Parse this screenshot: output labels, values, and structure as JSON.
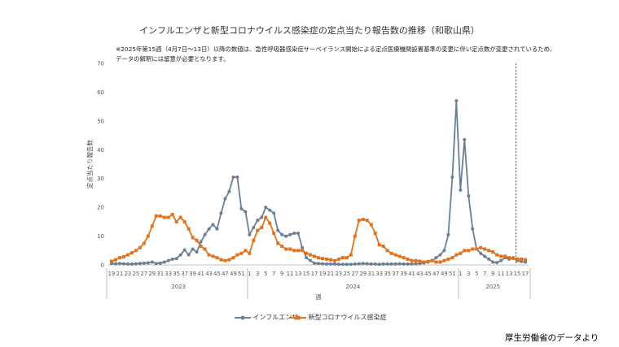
{
  "title": "インフルエンザと新型コロナウイルス感染症の定点当たり報告数の推移（和歌山県）",
  "notes": [
    "※2025年第15週（4月7日～13日）以降の数値は、急性呼吸器感染症サーベイランス開始による定点医療機関設置基準の変更に伴い定点数が変更されているため、",
    "データの解釈には留意が必要となります。"
  ],
  "source": "厚生労働省のデータより",
  "colors": {
    "influenza": "#6b7f95",
    "covid": "#e0731f",
    "axis": "#bfbfbf",
    "vline": "#555555"
  },
  "chart_data": {
    "type": "line",
    "ylabel": "定点当たり報告数",
    "xlabel": "週",
    "ylim": [
      0,
      70
    ],
    "yticks": [
      0,
      10,
      20,
      30,
      40,
      50,
      60,
      70
    ],
    "grid": false,
    "legend": "bottom",
    "x": [
      19,
      20,
      21,
      22,
      23,
      24,
      25,
      26,
      27,
      28,
      29,
      30,
      31,
      32,
      33,
      34,
      35,
      36,
      37,
      38,
      39,
      40,
      41,
      42,
      43,
      44,
      45,
      46,
      47,
      48,
      49,
      50,
      51,
      52,
      1,
      2,
      3,
      4,
      5,
      6,
      7,
      8,
      9,
      10,
      11,
      12,
      13,
      14,
      15,
      16,
      17,
      18,
      19,
      20,
      21,
      22,
      23,
      24,
      25,
      26,
      27,
      28,
      29,
      30,
      31,
      32,
      33,
      34,
      35,
      36,
      37,
      38,
      39,
      40,
      41,
      42,
      43,
      44,
      45,
      46,
      47,
      48,
      49,
      50,
      51,
      52,
      1,
      2,
      3,
      4,
      5,
      6,
      7,
      8,
      9,
      10,
      11,
      12,
      13,
      14,
      15,
      16,
      17
    ],
    "xtick_labels": [
      "19",
      "21",
      "23",
      "25",
      "27",
      "29",
      "31",
      "33",
      "35",
      "37",
      "39",
      "41",
      "43",
      "45",
      "47",
      "49",
      "51",
      "1",
      "3",
      "5",
      "7",
      "9",
      "11",
      "13",
      "15",
      "17",
      "19",
      "21",
      "23",
      "25",
      "27",
      "29",
      "31",
      "33",
      "35",
      "37",
      "39",
      "41",
      "43",
      "45",
      "47",
      "49",
      "51",
      "1",
      "3",
      "5",
      "7",
      "9",
      "11",
      "13",
      "15",
      "17"
    ],
    "year_labels": [
      "2023",
      "2024",
      "2025"
    ],
    "vline_week": "2025年第15週",
    "series": [
      {
        "name": "インフルエンザ",
        "values": [
          0.5,
          0.4,
          0.5,
          0.4,
          0.3,
          0.3,
          0.4,
          0.5,
          0.6,
          0.7,
          1.0,
          0.5,
          0.6,
          1.0,
          1.5,
          2.0,
          2.2,
          3.5,
          5.2,
          3.5,
          5.5,
          4.5,
          8.0,
          10.5,
          12.5,
          14.0,
          12.5,
          18.0,
          23.0,
          25.5,
          30.5,
          30.5,
          19.5,
          18.5,
          10.5,
          13.0,
          15.5,
          16.5,
          20.0,
          19.0,
          18.0,
          12.0,
          10.5,
          10.0,
          10.5,
          11.0,
          11.0,
          6.0,
          2.5,
          1.5,
          0.6,
          0.5,
          0.4,
          0.3,
          0.3,
          0.3,
          0.2,
          0.2,
          0.2,
          0.2,
          0.3,
          0.4,
          0.5,
          0.4,
          0.3,
          0.3,
          0.2,
          0.3,
          0.3,
          0.3,
          0.3,
          0.4,
          0.3,
          0.3,
          0.3,
          0.4,
          0.5,
          0.7,
          1.0,
          1.5,
          2.5,
          3.5,
          5.0,
          10.5,
          30.5,
          57.0,
          26.0,
          43.5,
          24.0,
          12.5,
          5.5,
          4.0,
          3.0,
          2.0,
          1.0,
          0.8,
          1.5,
          2.5,
          2.0,
          2.5,
          1.5,
          1.2,
          1.0
        ]
      },
      {
        "name": "新型コロナウイルス感染症",
        "values": [
          1.3,
          1.8,
          2.5,
          2.8,
          3.5,
          4.2,
          5.0,
          6.0,
          7.5,
          10.0,
          13.5,
          17.0,
          17.0,
          16.5,
          16.5,
          17.5,
          15.0,
          16.5,
          15.0,
          12.5,
          9.5,
          8.5,
          6.5,
          5.5,
          3.5,
          3.0,
          2.5,
          1.8,
          1.5,
          1.8,
          2.5,
          3.5,
          4.0,
          5.0,
          4.0,
          8.5,
          12.0,
          13.0,
          16.5,
          14.5,
          11.0,
          7.5,
          6.5,
          5.5,
          5.5,
          5.0,
          5.0,
          5.0,
          4.0,
          3.5,
          3.0,
          2.5,
          2.2,
          2.0,
          1.8,
          1.5,
          2.0,
          2.5,
          2.5,
          3.5,
          10.0,
          15.5,
          15.8,
          15.5,
          14.0,
          11.0,
          7.0,
          6.5,
          5.0,
          4.0,
          3.5,
          3.0,
          2.5,
          2.0,
          1.5,
          1.5,
          1.3,
          1.0,
          1.2,
          1.5,
          1.0,
          1.0,
          1.5,
          2.0,
          2.5,
          3.5,
          4.0,
          5.0,
          5.0,
          5.5,
          5.5,
          6.0,
          5.5,
          5.0,
          4.5,
          3.5,
          3.0,
          3.0,
          2.5,
          2.3,
          2.0,
          2.0,
          1.8
        ]
      }
    ]
  }
}
